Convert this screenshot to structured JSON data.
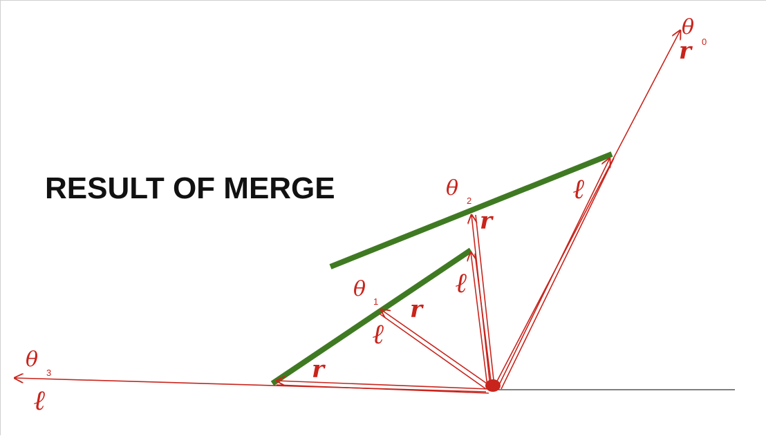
{
  "title": "RESULT OF MERGE",
  "colors": {
    "arrow": "#c8241c",
    "segment": "#3f7a22",
    "baseline": "#555555",
    "text": "#111111"
  },
  "labels": {
    "theta0": "θ",
    "theta0_sub": "0",
    "theta1": "θ",
    "theta1_sub": "1",
    "theta2": "θ",
    "theta2_sub": "2",
    "theta3": "θ",
    "theta3_sub": "3",
    "r": "r",
    "l": "ℓ"
  }
}
